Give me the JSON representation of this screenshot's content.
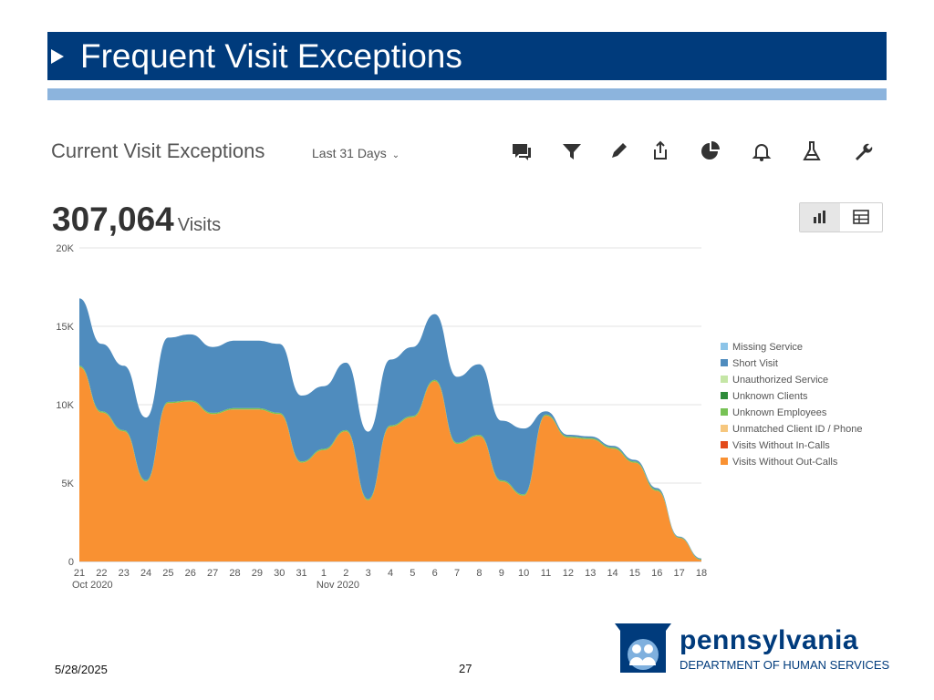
{
  "slide": {
    "title": "Frequent Visit Exceptions",
    "date": "5/28/2025",
    "page_number": "27",
    "logo_name": "pennsylvania",
    "logo_department": "DEPARTMENT OF HUMAN SERVICES"
  },
  "dashboard": {
    "title": "Current Visit Exceptions",
    "period_label": "Last 31 Days",
    "total_value": "307,064",
    "total_unit": "Visits",
    "toolbar_icons": [
      "comment-icon",
      "filter-icon",
      "pencil-icon",
      "share-icon",
      "pie-chart-icon",
      "bell-icon",
      "flask-icon",
      "wrench-icon"
    ],
    "view_toggle": [
      "bar-chart-icon",
      "table-icon"
    ]
  },
  "colors": {
    "title_bar": "#003b7c",
    "title_rule": "#8cb4dd",
    "short_visit": "#4f8cbe",
    "out_calls": "#f99132"
  },
  "chart_data": {
    "type": "area",
    "stacked": true,
    "x": [
      "21",
      "22",
      "23",
      "24",
      "25",
      "26",
      "27",
      "28",
      "29",
      "30",
      "31",
      "1",
      "2",
      "3",
      "4",
      "5",
      "6",
      "7",
      "8",
      "9",
      "10",
      "11",
      "12",
      "13",
      "14",
      "15",
      "16",
      "17",
      "18"
    ],
    "x_groups": [
      {
        "label": "Oct 2020",
        "start": "21"
      },
      {
        "label": "Nov 2020",
        "start": "1"
      }
    ],
    "y_ticks": [
      "0",
      "5K",
      "10K",
      "15K",
      "20K"
    ],
    "ylim": [
      0,
      20000
    ],
    "grid": true,
    "legend_position": "right",
    "series": [
      {
        "name": "Missing Service",
        "color": "#8cc4e8",
        "values": [
          0,
          0,
          0,
          0,
          0,
          0,
          0,
          0,
          0,
          0,
          0,
          0,
          0,
          0,
          0,
          0,
          0,
          0,
          0,
          0,
          0,
          0,
          0,
          0,
          0,
          0,
          0,
          0,
          0
        ]
      },
      {
        "name": "Short Visit",
        "color": "#4f8cbe",
        "values": [
          4300,
          4300,
          4100,
          4000,
          4100,
          4200,
          4200,
          4300,
          4300,
          4400,
          4200,
          4000,
          4300,
          4300,
          4200,
          4400,
          4200,
          4200,
          4500,
          3800,
          4200,
          200,
          100,
          100,
          100,
          100,
          100,
          50,
          50
        ]
      },
      {
        "name": "Unauthorized Service",
        "color": "#c5e6a6",
        "values": [
          0,
          0,
          0,
          0,
          0,
          0,
          0,
          0,
          0,
          0,
          0,
          0,
          0,
          0,
          0,
          0,
          0,
          0,
          0,
          0,
          0,
          0,
          0,
          0,
          0,
          0,
          0,
          0,
          0
        ]
      },
      {
        "name": "Unknown Clients",
        "color": "#2e8b3a",
        "values": [
          0,
          0,
          0,
          0,
          0,
          0,
          0,
          0,
          0,
          0,
          0,
          0,
          0,
          0,
          0,
          0,
          0,
          0,
          0,
          0,
          0,
          0,
          0,
          0,
          0,
          0,
          0,
          0,
          0
        ]
      },
      {
        "name": "Unknown Employees",
        "color": "#77c255",
        "values": [
          80,
          80,
          80,
          80,
          80,
          80,
          80,
          80,
          80,
          80,
          80,
          80,
          80,
          80,
          80,
          80,
          80,
          80,
          80,
          80,
          80,
          80,
          80,
          80,
          80,
          80,
          80,
          40,
          40
        ]
      },
      {
        "name": "Unmatched Client ID / Phone",
        "color": "#f6c77e",
        "values": [
          0,
          0,
          0,
          0,
          0,
          0,
          0,
          0,
          0,
          0,
          0,
          0,
          0,
          0,
          0,
          0,
          0,
          0,
          0,
          0,
          0,
          0,
          0,
          0,
          0,
          0,
          0,
          0,
          0
        ]
      },
      {
        "name": "Visits Without In-Calls",
        "color": "#e34a1b",
        "values": [
          0,
          0,
          0,
          0,
          0,
          0,
          0,
          0,
          0,
          0,
          0,
          0,
          0,
          0,
          0,
          0,
          0,
          0,
          0,
          0,
          0,
          0,
          0,
          0,
          0,
          0,
          0,
          0,
          0
        ]
      },
      {
        "name": "Visits Without Out-Calls",
        "color": "#f99132",
        "values": [
          12400,
          9500,
          8300,
          5100,
          10100,
          10200,
          9400,
          9700,
          9700,
          9400,
          6300,
          7100,
          8300,
          3900,
          8600,
          9200,
          11500,
          7500,
          8000,
          5100,
          4200,
          9300,
          7900,
          7800,
          7200,
          6300,
          4500,
          1500,
          100
        ]
      }
    ]
  }
}
